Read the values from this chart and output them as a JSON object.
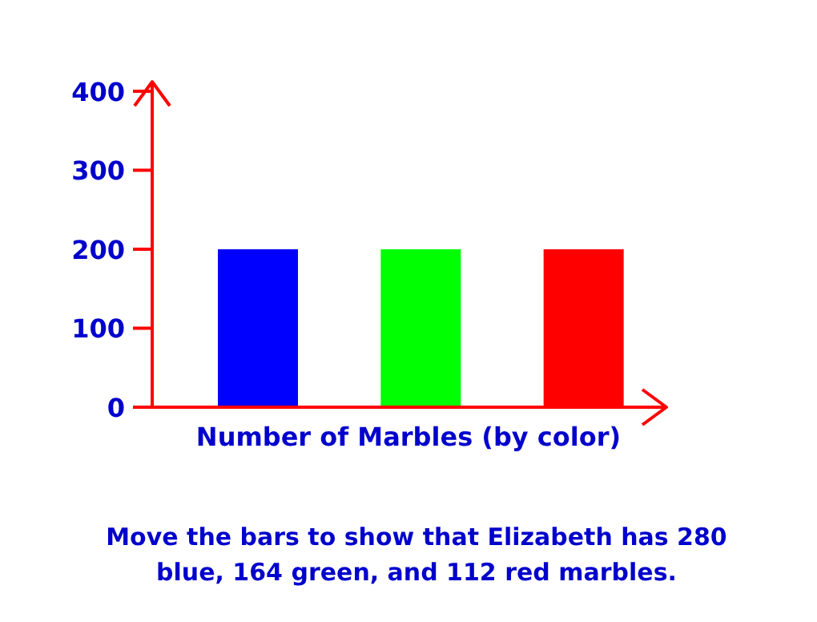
{
  "chart_data": {
    "type": "bar",
    "xlabel": "Number of Marbles (by color)",
    "categories": [
      null,
      null,
      null
    ],
    "values": [
      200,
      200,
      200
    ],
    "colors": [
      "#0000ff",
      "#00ff00",
      "#ff0000"
    ],
    "ylim": [
      0,
      410
    ],
    "yticks": [
      0,
      100,
      200,
      300,
      400
    ],
    "grid": false,
    "annotations": [
      "Move the bars to show that Elizabeth has 280 blue, 164 green, and 112 red marbles."
    ]
  }
}
